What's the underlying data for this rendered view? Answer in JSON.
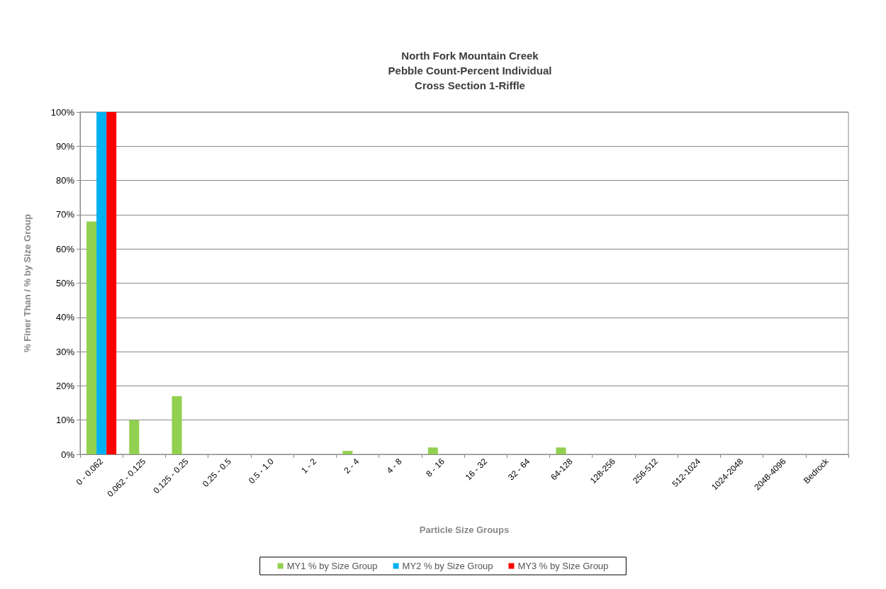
{
  "chart_data": {
    "type": "bar",
    "title": "North Fork Mountain Creek\nPebble Count-Percent Individual\nCross Section 1-Riffle",
    "xlabel": "Particle Size Groups",
    "ylabel": "% Finer Than / % by Size Group",
    "categories": [
      "0 - 0.062",
      "0.062 - 0.125",
      "0.125 - 0.25",
      "0.25 - 0.5",
      "0.5 - 1.0",
      "1 - 2",
      "2 - 4",
      "4 - 8",
      "8 - 16",
      "16 - 32",
      "32 - 64",
      "64-128",
      "128-256",
      "256-512",
      "512-1024",
      "1024-2048",
      "2048-4096",
      "Bedrock"
    ],
    "series": [
      {
        "name": "MY1 % by Size Group",
        "color": "#92d050",
        "values": [
          68,
          10,
          17,
          0,
          0,
          0,
          1,
          0,
          2,
          0,
          0,
          2,
          0,
          0,
          0,
          0,
          0,
          0
        ]
      },
      {
        "name": "MY2 % by Size Group",
        "color": "#00b0f0",
        "values": [
          100,
          0,
          0,
          0,
          0,
          0,
          0,
          0,
          0,
          0,
          0,
          0,
          0,
          0,
          0,
          0,
          0,
          0
        ]
      },
      {
        "name": "MY3 % by Size Group",
        "color": "#ff0000",
        "values": [
          100,
          0,
          0,
          0,
          0,
          0,
          0,
          0,
          0,
          0,
          0,
          0,
          0,
          0,
          0,
          0,
          0,
          0
        ]
      }
    ],
    "ylim": [
      0,
      100
    ],
    "yticks": [
      {
        "value": 0,
        "label": "0%"
      },
      {
        "value": 10,
        "label": "10%"
      },
      {
        "value": 20,
        "label": "20%"
      },
      {
        "value": 30,
        "label": "30%"
      },
      {
        "value": 40,
        "label": "40%"
      },
      {
        "value": 50,
        "label": "50%"
      },
      {
        "value": 60,
        "label": "60%"
      },
      {
        "value": 70,
        "label": "70%"
      },
      {
        "value": 80,
        "label": "80%"
      },
      {
        "value": 90,
        "label": "90%"
      },
      {
        "value": 100,
        "label": "100%"
      }
    ],
    "grid": "y",
    "legend": "bottom"
  }
}
